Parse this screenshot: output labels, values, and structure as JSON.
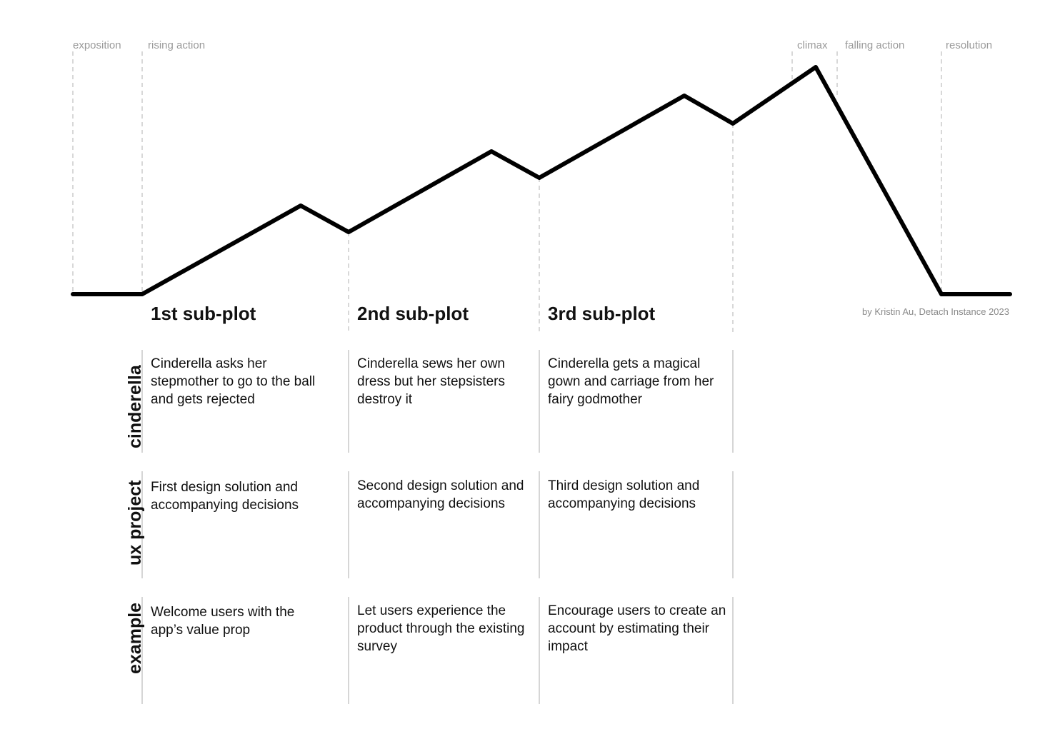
{
  "phases": {
    "exposition": "exposition",
    "rising_action": "rising action",
    "climax": "climax",
    "falling_action": "falling action",
    "resolution": "resolution"
  },
  "subplots": [
    "1st sub-plot",
    "2nd sub-plot",
    "3rd sub-plot"
  ],
  "credit": "by Kristin Au,  Detach Instance 2023",
  "rows": [
    {
      "label": "cinderella",
      "cells": [
        "Cinderella asks her stepmother to go to the ball and gets rejected",
        "Cinderella sews her own dress but her stepsisters destroy it",
        "Cinderella gets a magical gown and carriage from her fairy godmother"
      ]
    },
    {
      "label": "ux project",
      "cells": [
        "First design solution and accompanying decisions",
        "Second design solution and accompanying decisions",
        "Third design solution and accompanying decisions"
      ]
    },
    {
      "label": "example",
      "cells": [
        "Welcome users with the app’s  value prop",
        "Let users experience the product through the existing survey",
        "Encourage users to create an account by estimating their impact"
      ]
    }
  ],
  "colors": {
    "line": "#000000",
    "guides": "#c4c4c4",
    "muted_text": "#9a9a9a"
  }
}
